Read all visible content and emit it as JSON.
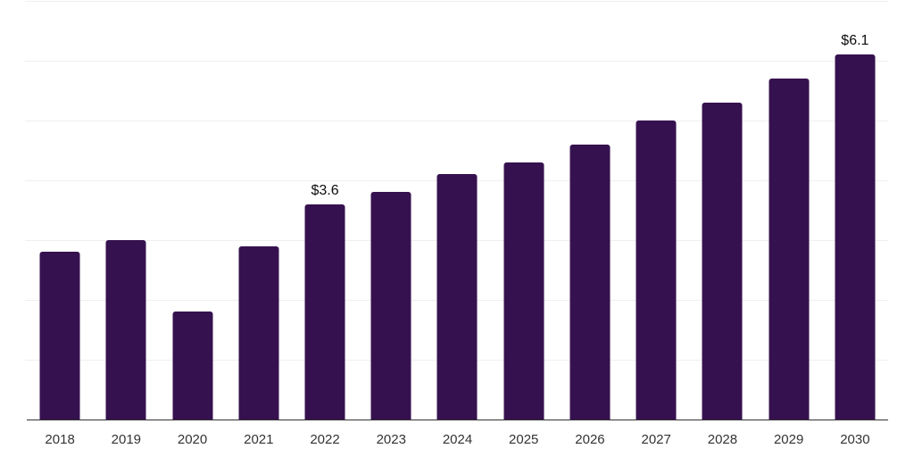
{
  "chart_data": {
    "type": "bar",
    "title": "",
    "xlabel": "",
    "ylabel": "",
    "categories": [
      "2018",
      "2019",
      "2020",
      "2021",
      "2022",
      "2023",
      "2024",
      "2025",
      "2026",
      "2027",
      "2028",
      "2029",
      "2030"
    ],
    "values": [
      2.8,
      3.0,
      1.8,
      2.9,
      3.6,
      3.8,
      4.1,
      4.3,
      4.6,
      5.0,
      5.3,
      5.7,
      6.1
    ],
    "point_labels": [
      "",
      "",
      "",
      "",
      "$3.6",
      "",
      "",
      "",
      "",
      "",
      "",
      "",
      "$6.1"
    ],
    "ylim": [
      0,
      7
    ],
    "gridlines": "horizontal, at 1 unit intervals from 1 to 7",
    "legend": "none",
    "colors": {
      "bar": "#36114f",
      "gridline": "#efefef",
      "axis_line": "#333333",
      "tick_text": "#333333",
      "value_label_text": "#0d0d0d",
      "background": "#ffffff"
    }
  }
}
